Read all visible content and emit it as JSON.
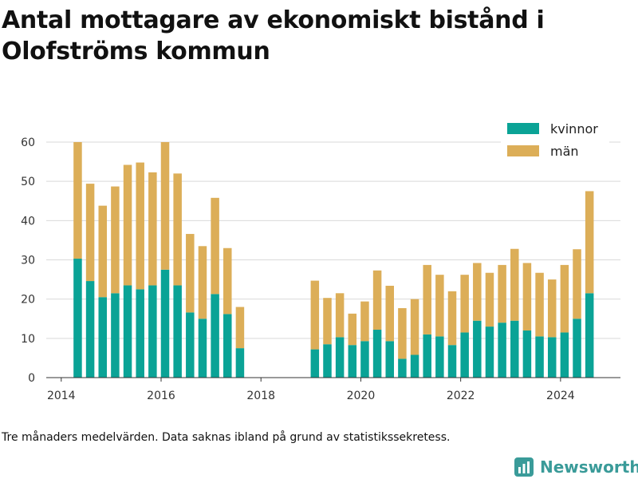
{
  "title": "Antal mottagare av ekonomiskt bistånd i Olofströms kommun",
  "footnote": "Tre månaders medelvärden. Data saknas ibland på grund av statistikssekretess.",
  "brand": "Newsworthy",
  "colors": {
    "kvinnor": "#0aa396",
    "man": "#dcae58",
    "grid": "#d9d9d9",
    "axis": "#333333",
    "brand": "#3a9b99"
  },
  "chart_data": {
    "type": "bar",
    "stacked": true,
    "x_axis": {
      "min": 2013.7,
      "max": 2025.2,
      "ticks": [
        "2014",
        "2016",
        "2018",
        "2020",
        "2022",
        "2024"
      ]
    },
    "y_axis": {
      "min": 0,
      "max": 60,
      "ticks": [
        "0",
        "10",
        "20",
        "30",
        "40",
        "50",
        "60"
      ]
    },
    "grid": "horizontal",
    "legend_position": "top-right",
    "x": [
      2014.33,
      2014.58,
      2014.83,
      2015.08,
      2015.33,
      2015.58,
      2015.83,
      2016.08,
      2016.33,
      2016.58,
      2016.83,
      2017.08,
      2017.33,
      2017.58,
      2019.08,
      2019.33,
      2019.58,
      2019.83,
      2020.08,
      2020.33,
      2020.58,
      2020.83,
      2021.08,
      2021.33,
      2021.58,
      2021.83,
      2022.08,
      2022.33,
      2022.58,
      2022.83,
      2023.08,
      2023.33,
      2023.58,
      2023.83,
      2024.08,
      2024.33,
      2024.58
    ],
    "series": [
      {
        "name": "kvinnor",
        "values": [
          30.3,
          24.6,
          20.5,
          21.5,
          23.5,
          22.5,
          23.5,
          27.5,
          23.5,
          16.6,
          15.0,
          21.3,
          16.2,
          7.5,
          7.2,
          8.5,
          10.3,
          8.3,
          9.3,
          12.2,
          9.3,
          4.8,
          5.8,
          11.0,
          10.5,
          8.3,
          11.5,
          14.5,
          13.0,
          14.0,
          14.5,
          12.0,
          10.5,
          10.3,
          11.5,
          15.0,
          21.5
        ]
      },
      {
        "name": "män",
        "values": [
          29.7,
          24.8,
          23.3,
          27.2,
          30.7,
          32.3,
          28.8,
          32.5,
          28.5,
          20.0,
          18.5,
          24.5,
          16.8,
          10.5,
          17.5,
          11.8,
          11.2,
          8.0,
          10.1,
          15.1,
          14.1,
          12.9,
          14.2,
          17.7,
          15.7,
          13.7,
          14.7,
          14.7,
          13.7,
          14.7,
          18.3,
          17.2,
          16.2,
          14.7,
          17.2,
          17.7,
          26.0
        ]
      }
    ]
  }
}
